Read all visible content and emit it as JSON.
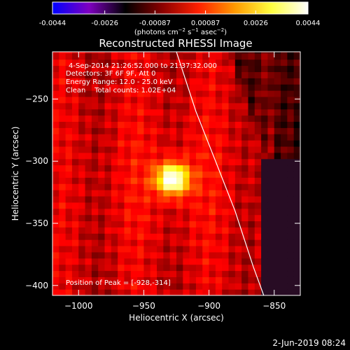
{
  "colorbar": {
    "ticks": [
      "-0.0044",
      "-0.0026",
      "-0.00087",
      "0.00087",
      "0.0026",
      "0.0044"
    ],
    "tick_values": [
      -0.0044,
      -0.0026,
      -0.00087,
      0.00087,
      0.0026,
      0.0044
    ],
    "range": [
      -0.0044,
      0.0044
    ],
    "colormap_stops": [
      "#0000ff",
      "#7f00c0",
      "#000000",
      "#8a0000",
      "#ff2000",
      "#ff9a00",
      "#ffff40",
      "#ffffff"
    ],
    "unit_main": "(photons cm",
    "unit_sup1": "−2",
    "unit_mid": " s",
    "unit_sup2": "−1",
    "unit_end": " asec",
    "unit_sup3": "−2",
    "unit_close": ")"
  },
  "chart_data": {
    "type": "heatmap",
    "title": "Reconstructed RHESSI Image",
    "xlabel": "Heliocentric X (arcsec)",
    "ylabel": "Heliocentric Y (arcsec)",
    "xlim": [
      -1020,
      -830
    ],
    "ylim": [
      -408,
      -212
    ],
    "x_ticks": [
      -1000,
      -950,
      -900,
      -850
    ],
    "y_ticks": [
      -250,
      -300,
      -350,
      -400
    ],
    "x_tick_labels": [
      "−1000",
      "−950",
      "−900",
      "−850"
    ],
    "y_tick_labels": [
      "−250",
      "−300",
      "−350",
      "−400"
    ],
    "peak": {
      "x": -928,
      "y": -314
    },
    "limb_curve": {
      "x": [
        -925,
        -910,
        -895,
        -880,
        -866,
        -858
      ],
      "y": [
        -212,
        -260,
        -300,
        -340,
        -385,
        -408
      ]
    },
    "annotations": [
      "4-Sep-2014 21:26:52.000 to 21:37:32.000",
      "Detectors: 3F 6F 9F, Att 0",
      "Energy Range: 12.0 - 25.0 keV",
      "Clean    Total counts: 1.02E+04"
    ],
    "peak_label": "Position of Peak = [-928,-314]"
  },
  "footer": {
    "timestamp": "2-Jun-2019 08:24"
  }
}
